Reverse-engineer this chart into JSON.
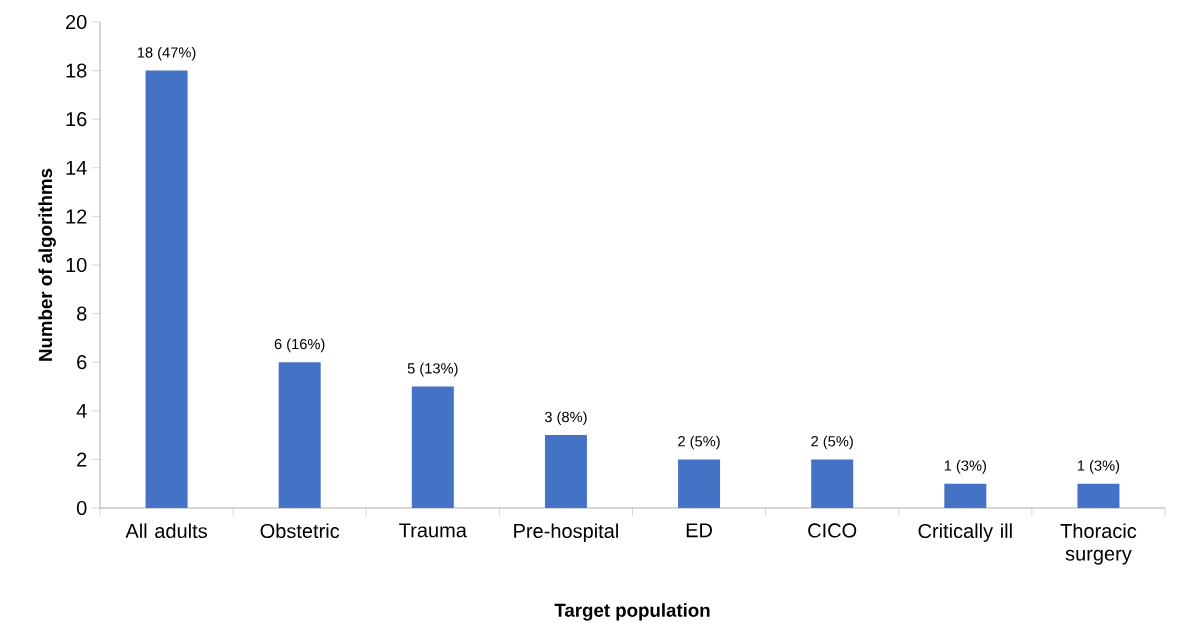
{
  "chart_data": {
    "type": "bar",
    "xlabel": "Target population",
    "ylabel": "Number of algorithms",
    "categories": [
      "All adults",
      "Obstetric",
      "Trauma",
      "Pre-hospital",
      "ED",
      "CICO",
      "Critically ill",
      "Thoracic surgery"
    ],
    "values": [
      18,
      6,
      5,
      3,
      2,
      2,
      1,
      1
    ],
    "value_labels": [
      "18 (47%)",
      "6 (16%)",
      "5 (13%)",
      "3 (8%)",
      "2 (5%)",
      "2 (5%)",
      "1 (3%)",
      "1 (3%)"
    ],
    "color": "#4472c4",
    "ylim": [
      0,
      20
    ],
    "yticks": [
      0,
      2,
      4,
      6,
      8,
      10,
      12,
      14,
      16,
      18,
      20
    ],
    "grid": false
  }
}
